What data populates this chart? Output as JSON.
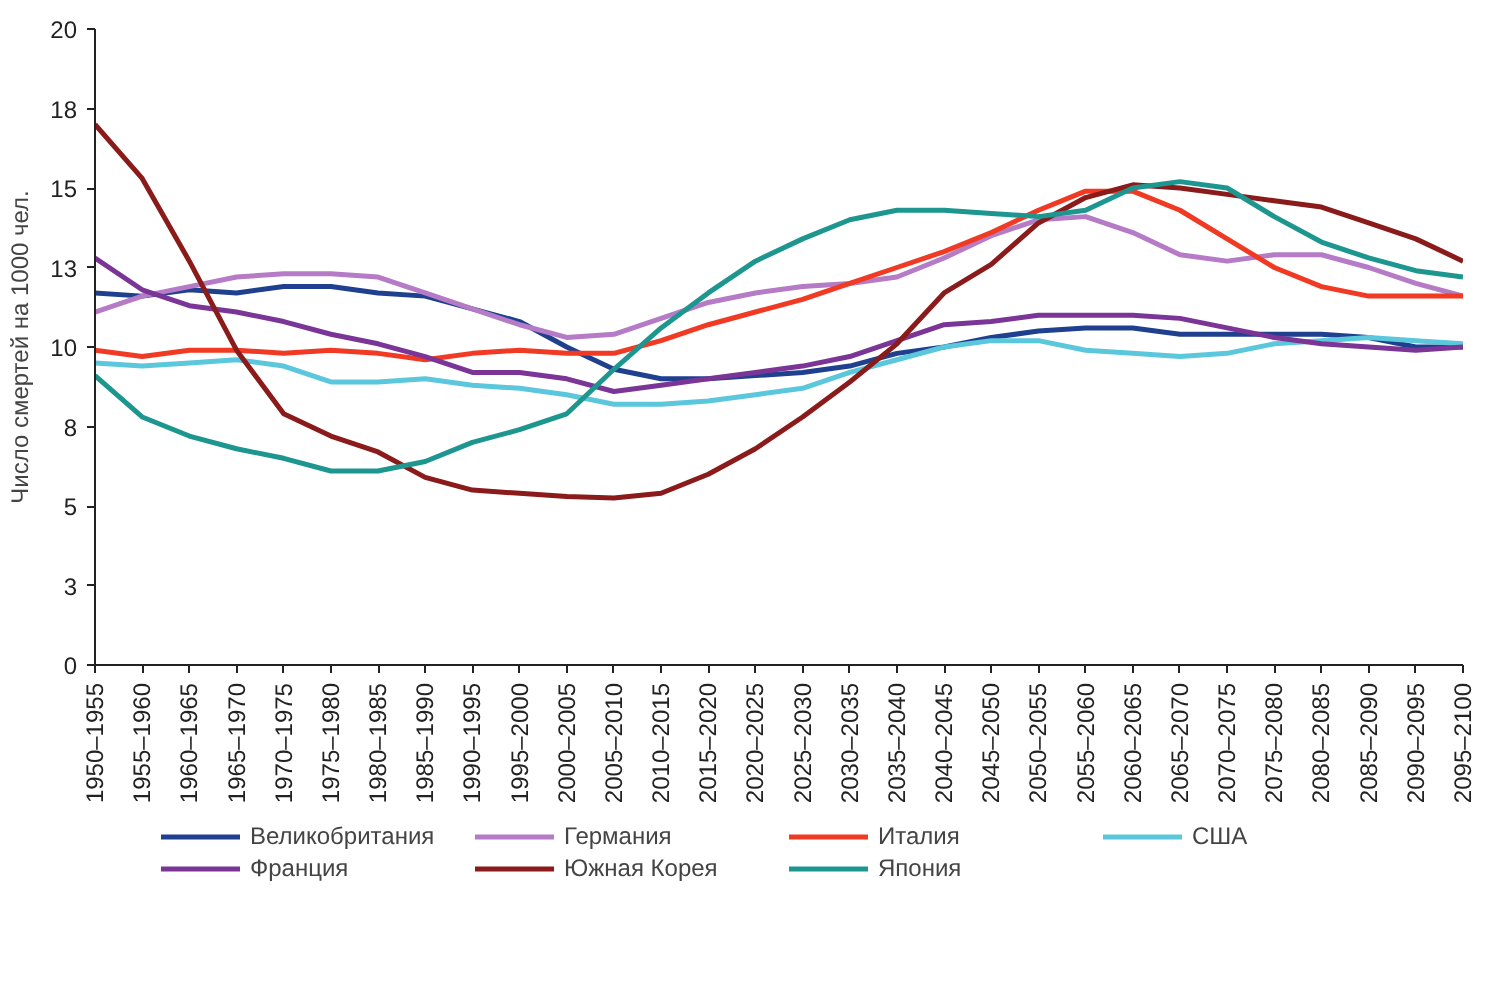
{
  "chart_data": {
    "type": "line",
    "ylabel": "Число смертей на 1000 чел.",
    "categories": [
      "1950–1955",
      "1955–1960",
      "1960–1965",
      "1965–1970",
      "1970–1975",
      "1975–1980",
      "1980–1985",
      "1985–1990",
      "1990–1995",
      "1995–2000",
      "2000–2005",
      "2005–2010",
      "2010–2015",
      "2015–2020",
      "2020–2025",
      "2025–2030",
      "2030–2035",
      "2035–2040",
      "2040–2045",
      "2045–2050",
      "2050–2055",
      "2055–2060",
      "2060–2065",
      "2065–2070",
      "2070–2075",
      "2075–2080",
      "2080–2085",
      "2085–2090",
      "2090–2095",
      "2095–2100"
    ],
    "series": [
      {
        "name": "Великобритания",
        "color": "#1f3f8f",
        "values": [
          11.7,
          11.6,
          11.8,
          11.7,
          11.9,
          11.9,
          11.7,
          11.6,
          11.2,
          10.8,
          10.0,
          9.3,
          9.0,
          9.0,
          9.1,
          9.2,
          9.4,
          9.8,
          10.0,
          10.3,
          10.5,
          10.6,
          10.6,
          10.4,
          10.4,
          10.4,
          10.4,
          10.3,
          10.0,
          10.0
        ]
      },
      {
        "name": "Германия",
        "color": "#b57bc6",
        "values": [
          11.1,
          11.6,
          11.9,
          12.2,
          12.3,
          12.3,
          12.2,
          11.7,
          11.2,
          10.7,
          10.3,
          10.4,
          10.9,
          11.4,
          11.7,
          11.9,
          12.0,
          12.2,
          12.8,
          13.5,
          14.0,
          14.1,
          13.6,
          12.9,
          12.7,
          12.9,
          12.9,
          12.5,
          12.0,
          11.6
        ]
      },
      {
        "name": "Италия",
        "color": "#f03a23",
        "values": [
          9.9,
          9.7,
          9.9,
          9.9,
          9.8,
          9.9,
          9.8,
          9.6,
          9.8,
          9.9,
          9.8,
          9.8,
          10.2,
          10.7,
          11.1,
          11.5,
          12.0,
          12.5,
          13.0,
          13.6,
          14.3,
          14.9,
          14.9,
          14.3,
          13.4,
          12.5,
          11.9,
          11.6,
          11.6,
          11.6
        ]
      },
      {
        "name": "США",
        "color": "#5bc7dc",
        "values": [
          9.5,
          9.4,
          9.5,
          9.6,
          9.4,
          8.9,
          8.9,
          9.0,
          8.8,
          8.7,
          8.5,
          8.2,
          8.2,
          8.3,
          8.5,
          8.7,
          9.2,
          9.6,
          10.0,
          10.2,
          10.2,
          9.9,
          9.8,
          9.7,
          9.8,
          10.1,
          10.2,
          10.3,
          10.2,
          10.1
        ]
      },
      {
        "name": "Франция",
        "color": "#7b3596",
        "values": [
          12.8,
          11.8,
          11.3,
          11.1,
          10.8,
          10.4,
          10.1,
          9.7,
          9.2,
          9.2,
          9.0,
          8.6,
          8.8,
          9.0,
          9.2,
          9.4,
          9.7,
          10.2,
          10.7,
          10.8,
          11.0,
          11.0,
          11.0,
          10.9,
          10.6,
          10.3,
          10.1,
          10.0,
          9.9,
          10.0
        ]
      },
      {
        "name": "Южная Корея",
        "color": "#8b1a1a",
        "values": [
          17.0,
          15.3,
          12.7,
          9.9,
          7.9,
          7.2,
          6.7,
          5.9,
          5.5,
          5.4,
          5.3,
          5.25,
          5.4,
          6.0,
          6.8,
          7.8,
          8.9,
          10.1,
          11.7,
          12.6,
          13.9,
          14.7,
          15.1,
          15.0,
          14.8,
          14.6,
          14.4,
          13.9,
          13.4,
          12.7
        ]
      },
      {
        "name": "Япония",
        "color": "#1e9690",
        "values": [
          9.1,
          7.8,
          7.2,
          6.8,
          6.5,
          6.1,
          6.1,
          6.4,
          7.0,
          7.4,
          7.9,
          9.3,
          10.6,
          11.7,
          12.7,
          13.4,
          14.0,
          14.3,
          14.3,
          14.2,
          14.1,
          14.3,
          15.0,
          15.2,
          15.0,
          14.1,
          13.3,
          12.8,
          12.4,
          12.2
        ]
      }
    ],
    "ylim": [
      0,
      20
    ],
    "yticks": [
      0,
      {
        "value": 2.5,
        "label": "3"
      },
      5,
      {
        "value": 7.5,
        "label": "8"
      },
      10,
      {
        "value": 12.5,
        "label": "13"
      },
      15,
      {
        "value": 17.5,
        "label": "18"
      },
      20
    ],
    "grid": false,
    "legend": "bottom",
    "marker": "none",
    "line_style": "solid"
  }
}
